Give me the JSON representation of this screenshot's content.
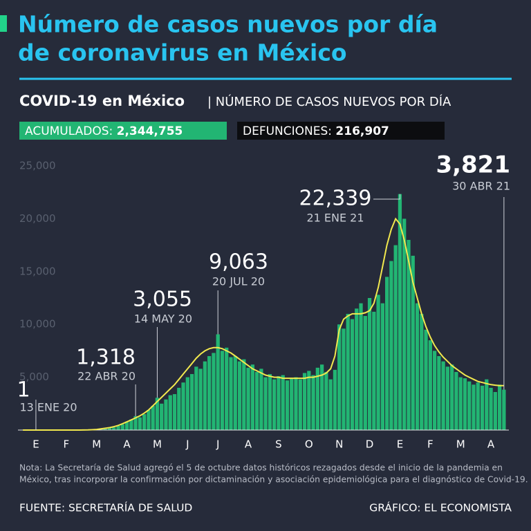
{
  "chart_data": {
    "type": "bar",
    "title": [
      "Número de casos nuevos por día",
      "de coronavirus en México"
    ],
    "subtitle": "COVID-19 en México",
    "subtitle_detail": "| NÚMERO DE CASOS NUEVOS POR DÍA",
    "stats": [
      {
        "label": "ACUMULADOS:",
        "value": "2,344,755"
      },
      {
        "label": "DEFUNCIONES:",
        "value": "216,907"
      }
    ],
    "note": [
      "Nota: La Secretaría de Salud agregó el 5 de octubre datos históricos rezagados desde el inicio de la pandemia en",
      "México, tras incorporar la confirmación por dictaminación y asociación epidemiológica para el diagnóstico de Covid-19."
    ],
    "source": "FUENTE: SECRETARÍA DE SALUD",
    "credit": "GRÁFICO: EL ECONOMISTA",
    "color": "#22b573",
    "trend_color": "#f2e94e",
    "categories": [
      null,
      null,
      null,
      "E",
      null,
      null,
      null,
      null,
      null,
      null,
      "F",
      null,
      null,
      null,
      null,
      null,
      null,
      "M",
      null,
      null,
      null,
      null,
      null,
      null,
      "A",
      null,
      null,
      null,
      null,
      null,
      null,
      "M",
      null,
      null,
      null,
      null,
      null,
      null,
      "J",
      null,
      null,
      null,
      null,
      null,
      null,
      "J",
      null,
      null,
      null,
      null,
      null,
      null,
      "A",
      null,
      null,
      null,
      null,
      null,
      null,
      "S",
      null,
      null,
      null,
      null,
      null,
      null,
      "O",
      null,
      null,
      null,
      null,
      null,
      null,
      "N",
      null,
      null,
      null,
      null,
      null,
      null,
      "D",
      null,
      null,
      null,
      null,
      null,
      null,
      "E",
      null,
      null,
      null,
      null,
      null,
      null,
      "F",
      null,
      null,
      null,
      null,
      null,
      null,
      "M",
      null,
      null,
      null,
      null,
      null,
      null,
      "A",
      null,
      null,
      null
    ],
    "values": [
      0,
      0,
      0,
      1,
      0,
      0,
      0,
      0,
      0,
      0,
      0,
      0,
      0,
      0,
      0,
      0,
      5,
      20,
      60,
      120,
      200,
      250,
      400,
      550,
      800,
      1000,
      1318,
      1200,
      1500,
      1900,
      2300,
      3055,
      2500,
      2900,
      3300,
      3400,
      4000,
      4500,
      5000,
      5300,
      6000,
      5800,
      6500,
      7000,
      7300,
      9063,
      7500,
      7800,
      6900,
      7000,
      6500,
      6700,
      5900,
      6200,
      5500,
      5800,
      5000,
      5300,
      4800,
      5100,
      5200,
      4700,
      4900,
      5000,
      4800,
      5400,
      5600,
      5200,
      5900,
      6200,
      5500,
      4800,
      5700,
      10000,
      9600,
      11000,
      10500,
      11500,
      12000,
      10800,
      12500,
      11200,
      12800,
      12000,
      14500,
      16000,
      17500,
      22339,
      20000,
      18000,
      16500,
      12000,
      11000,
      9500,
      8500,
      7500,
      7000,
      6500,
      6000,
      6200,
      5500,
      5000,
      4900,
      4600,
      4300,
      4500,
      4200,
      4800,
      4000,
      3600,
      4300,
      3821
    ],
    "trend_values": [
      0,
      0,
      0,
      0,
      0,
      0,
      0,
      0,
      0,
      0,
      0,
      0,
      0,
      0,
      5,
      10,
      30,
      60,
      110,
      170,
      230,
      320,
      440,
      600,
      780,
      960,
      1150,
      1350,
      1600,
      1900,
      2300,
      2700,
      3100,
      3500,
      3900,
      4300,
      4800,
      5300,
      5800,
      6300,
      6800,
      7200,
      7500,
      7700,
      7800,
      7800,
      7700,
      7500,
      7300,
      7000,
      6700,
      6400,
      6100,
      5800,
      5600,
      5400,
      5200,
      5100,
      5000,
      5000,
      4900,
      4900,
      4900,
      4900,
      4900,
      4900,
      5000,
      5000,
      5100,
      5200,
      5400,
      5800,
      7000,
      9500,
      10500,
      10800,
      11000,
      11000,
      11000,
      11100,
      11300,
      12000,
      13500,
      15500,
      17500,
      19000,
      20000,
      19500,
      18000,
      16000,
      14000,
      12500,
      11000,
      9800,
      8800,
      8000,
      7400,
      6900,
      6500,
      6100,
      5800,
      5500,
      5200,
      5000,
      4800,
      4600,
      4500,
      4400,
      4300,
      4250,
      4200,
      4200
    ],
    "ylim": [
      0,
      25000
    ],
    "yticks": [
      {
        "value": 5000,
        "label": "5,000"
      },
      {
        "value": 10000,
        "label": "10,000"
      },
      {
        "value": 15000,
        "label": "15,000"
      },
      {
        "value": 20000,
        "label": "20,000"
      },
      {
        "value": 25000,
        "label": "25,000"
      }
    ],
    "grid": false,
    "annotations": [
      {
        "value": 1,
        "label": "1",
        "date": "13 ENE 20"
      },
      {
        "value": 1318,
        "label": "1,318",
        "date": "22 ABR 20"
      },
      {
        "value": 3055,
        "label": "3,055",
        "date": "14 MAY 20"
      },
      {
        "value": 9063,
        "label": "9,063",
        "date": "20 JUL 20"
      },
      {
        "value": 22339,
        "label": "22,339",
        "date": "21 ENE 21"
      },
      {
        "value": 3821,
        "label": "3,821",
        "date": "30 ABR 21"
      }
    ]
  }
}
